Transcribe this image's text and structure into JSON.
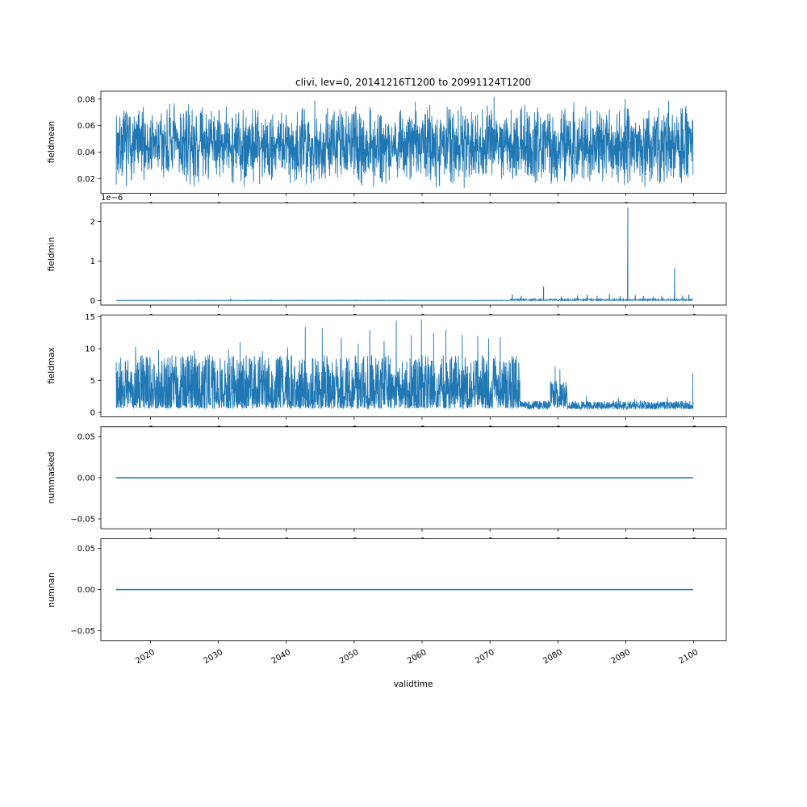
{
  "figure": {
    "title": "clivi, lev=0, 20141216T1200 to 20991124T1200",
    "line_color": "#1f77b4",
    "axis_color": "#000000",
    "background": "#ffffff",
    "seed": 7,
    "x": {
      "label": "validtime",
      "lim": [
        2012.7,
        2104.8
      ],
      "ticks": [
        2020,
        2030,
        2040,
        2050,
        2060,
        2070,
        2080,
        2090,
        2100
      ],
      "tick_labels": [
        "2020",
        "2030",
        "2040",
        "2050",
        "2060",
        "2070",
        "2080",
        "2090",
        "2100"
      ],
      "data_start": "20141216T1200",
      "data_end": "20991124T1200"
    }
  },
  "chart_data": [
    {
      "type": "line",
      "ylabel": "fieldmean",
      "ylim": [
        0.009,
        0.086
      ],
      "yticks": [
        0.02,
        0.04,
        0.06,
        0.08
      ],
      "ytick_labels": [
        "0.02",
        "0.04",
        "0.06",
        "0.08"
      ],
      "offset_text": "",
      "series": {
        "kind": "triangular",
        "x0": 2014.96,
        "x1": 2099.9,
        "n": 2600,
        "lo": 0.013,
        "hi": 0.078,
        "lw": 0.9,
        "spike_base": 0.05,
        "spikes": [
          {
            "x": 2023.5,
            "v": 0.077
          },
          {
            "x": 2033.8,
            "v": 0.014
          },
          {
            "x": 2044.2,
            "v": 0.079
          },
          {
            "x": 2059.0,
            "v": 0.078
          },
          {
            "x": 2066.2,
            "v": 0.013
          },
          {
            "x": 2070.6,
            "v": 0.082
          },
          {
            "x": 2089.9,
            "v": 0.08
          },
          {
            "x": 2096.3,
            "v": 0.079
          }
        ]
      }
    },
    {
      "type": "line",
      "ylabel": "fieldmin",
      "ylim": [
        -0.115,
        2.47
      ],
      "yticks": [
        0,
        1,
        2
      ],
      "ytick_labels": [
        "0",
        "1",
        "2"
      ],
      "offset_text": "1e−6",
      "units_scale": "1e-6",
      "series": {
        "kind": "baseline",
        "x0": 2014.96,
        "x1": 2099.9,
        "n": 1700,
        "base_lo": 0,
        "base_hi": 0.01,
        "noisy_from": 2073,
        "noisy_hi": 0.06,
        "lw": 1,
        "spike_base": 0.01,
        "spikes": [
          {
            "x": 2031.8,
            "v": 0.05
          },
          {
            "x": 2073.3,
            "v": 0.15
          },
          {
            "x": 2074.6,
            "v": 0.12
          },
          {
            "x": 2077.9,
            "v": 0.35
          },
          {
            "x": 2080.5,
            "v": 0.1
          },
          {
            "x": 2082.9,
            "v": 0.13
          },
          {
            "x": 2084.3,
            "v": 0.15
          },
          {
            "x": 2085.8,
            "v": 0.12
          },
          {
            "x": 2087.6,
            "v": 0.17
          },
          {
            "x": 2089.2,
            "v": 0.12
          },
          {
            "x": 2090.3,
            "v": 2.35
          },
          {
            "x": 2091.4,
            "v": 0.14
          },
          {
            "x": 2092.6,
            "v": 0.11
          },
          {
            "x": 2094.1,
            "v": 0.1
          },
          {
            "x": 2095.3,
            "v": 0.12
          },
          {
            "x": 2097.2,
            "v": 0.82
          },
          {
            "x": 2098.4,
            "v": 0.13
          },
          {
            "x": 2099.3,
            "v": 0.16
          }
        ]
      }
    },
    {
      "type": "line",
      "ylabel": "fieldmax",
      "ylim": [
        -0.7,
        15.3
      ],
      "yticks": [
        0,
        5,
        10,
        15
      ],
      "ytick_labels": [
        "0",
        "5",
        "10",
        "15"
      ],
      "offset_text": "",
      "series": {
        "kind": "segmented",
        "pts_per_year": 30,
        "lw": 0.9,
        "spike_base": 1.2,
        "segments": [
          {
            "x0": 2014.96,
            "x1": 2074.4,
            "lo": 0.6,
            "hi": 9.0,
            "power": 1.7
          },
          {
            "x0": 2074.4,
            "x1": 2078.9,
            "lo": 0.5,
            "hi": 1.9,
            "power": 1.2
          },
          {
            "x0": 2078.9,
            "x1": 2081.4,
            "lo": 0.6,
            "hi": 5.0,
            "power": 1.1
          },
          {
            "x0": 2081.4,
            "x1": 2099.9,
            "lo": 0.5,
            "hi": 1.8,
            "power": 1.3
          }
        ],
        "spikes": [
          {
            "x": 2017.8,
            "v": 10.3
          },
          {
            "x": 2021.2,
            "v": 9.8
          },
          {
            "x": 2026.5,
            "v": 9.7
          },
          {
            "x": 2031.5,
            "v": 9.9
          },
          {
            "x": 2033.2,
            "v": 11.0
          },
          {
            "x": 2036.5,
            "v": 9.6
          },
          {
            "x": 2040.2,
            "v": 10.2
          },
          {
            "x": 2042.8,
            "v": 13.4
          },
          {
            "x": 2045.3,
            "v": 13.2
          },
          {
            "x": 2048.1,
            "v": 11.7
          },
          {
            "x": 2050.6,
            "v": 10.8
          },
          {
            "x": 2052.3,
            "v": 12.9
          },
          {
            "x": 2054.4,
            "v": 11.2
          },
          {
            "x": 2056.2,
            "v": 14.4
          },
          {
            "x": 2058.4,
            "v": 12.1
          },
          {
            "x": 2059.9,
            "v": 14.6
          },
          {
            "x": 2061.7,
            "v": 12.4
          },
          {
            "x": 2063.5,
            "v": 13.0
          },
          {
            "x": 2065.9,
            "v": 12.2
          },
          {
            "x": 2068.2,
            "v": 12.0
          },
          {
            "x": 2069.8,
            "v": 11.6
          },
          {
            "x": 2071.5,
            "v": 11.8
          },
          {
            "x": 2079.6,
            "v": 7.2
          },
          {
            "x": 2080.3,
            "v": 6.8
          },
          {
            "x": 2084.2,
            "v": 2.6
          },
          {
            "x": 2088.9,
            "v": 2.3
          },
          {
            "x": 2091.3,
            "v": 2.1
          },
          {
            "x": 2096.1,
            "v": 2.4
          },
          {
            "x": 2099.85,
            "v": 6.2
          }
        ]
      }
    },
    {
      "type": "line",
      "ylabel": "nummasked",
      "ylim": [
        -0.062,
        0.062
      ],
      "yticks": [
        0.05,
        0,
        -0.05
      ],
      "ytick_labels": [
        "0.05",
        "0.00",
        "−0.05"
      ],
      "offset_text": "",
      "series": {
        "kind": "constant",
        "x0": 2014.96,
        "x1": 2099.9,
        "value": 0,
        "lw": 1.5
      }
    },
    {
      "type": "line",
      "ylabel": "numnan",
      "ylim": [
        -0.062,
        0.062
      ],
      "yticks": [
        0.05,
        0,
        -0.05
      ],
      "ytick_labels": [
        "0.05",
        "0.00",
        "−0.05"
      ],
      "offset_text": "",
      "series": {
        "kind": "constant",
        "x0": 2014.96,
        "x1": 2099.9,
        "value": 0,
        "lw": 1.5
      }
    }
  ]
}
